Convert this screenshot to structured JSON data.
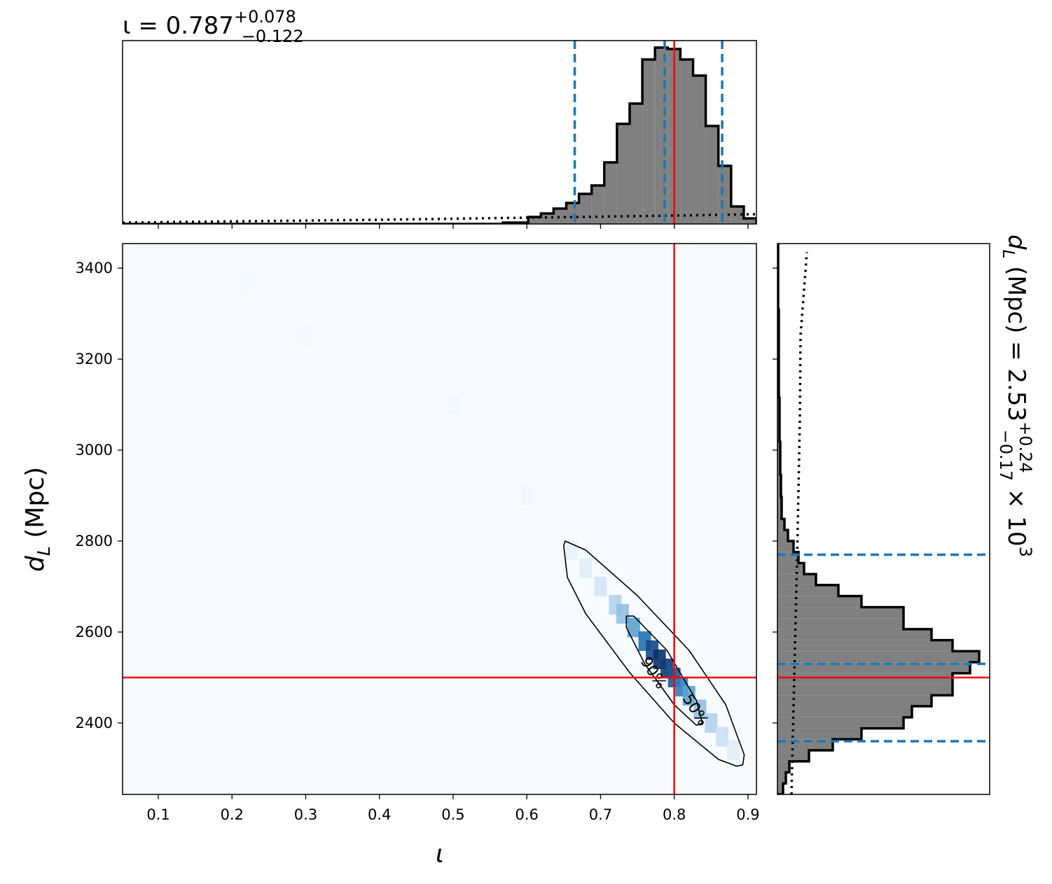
{
  "chart_data": [
    {
      "type": "histogram",
      "orientation": "vertical",
      "title": {
        "text": "ι = 0.787",
        "plus": "+0.078",
        "minus": "−0.122"
      },
      "bins": [
        0.0515,
        0.0687,
        0.0859,
        0.1031,
        0.1203,
        0.1375,
        0.1547,
        0.1719,
        0.1891,
        0.2063,
        0.2235,
        0.2407,
        0.2579,
        0.2751,
        0.2923,
        0.3095,
        0.3267,
        0.3439,
        0.3611,
        0.3783,
        0.3955,
        0.4127,
        0.4299,
        0.4471,
        0.4643,
        0.4815,
        0.4987,
        0.5159,
        0.5331,
        0.5503,
        0.5675,
        0.5847,
        0.6019,
        0.6191,
        0.6363,
        0.6535,
        0.6707,
        0.6879,
        0.7051,
        0.7223,
        0.7395,
        0.7567,
        0.7739,
        0.7911,
        0.8083,
        0.8255,
        0.8427,
        0.8599,
        0.8771,
        0.8943,
        0.9115
      ],
      "counts": [
        0,
        0,
        0,
        0,
        0,
        0,
        0,
        0,
        0,
        0,
        0,
        0,
        0,
        0,
        0,
        0,
        0,
        0,
        0,
        0,
        0,
        0,
        0,
        0,
        0,
        0,
        0,
        0,
        0,
        0,
        2,
        2,
        10,
        15,
        22,
        30,
        43,
        55,
        88,
        143,
        172,
        235,
        252,
        250,
        235,
        212,
        140,
        83,
        25,
        8
      ],
      "color": "#808080",
      "prior": {
        "x": [
          0.0515,
          0.4,
          0.6,
          0.8,
          0.9115
        ],
        "values": [
          2,
          6,
          9,
          12,
          14
        ]
      },
      "quantiles": [
        0.665,
        0.787,
        0.865
      ],
      "quantile_color": "#1f77b4",
      "truth": 0.8,
      "truth_color": "#ff0000",
      "xlim": [
        0.0515,
        0.9115
      ],
      "ylim": [
        0,
        262
      ],
      "xticks": [
        0.1,
        0.2,
        0.3,
        0.4,
        0.5,
        0.6,
        0.7,
        0.8,
        0.9
      ]
    },
    {
      "type": "hist2d",
      "xlabel": "ι",
      "ylabel": {
        "text": "d",
        "sub": "L",
        "rest": " (Mpc)"
      },
      "cmap": [
        "#f7fbff",
        "#c6dbef",
        "#6baed6",
        "#2171b5",
        "#08306b"
      ],
      "cells": {
        "x": [
          0.22,
          0.3,
          0.5,
          0.6,
          0.66,
          0.68,
          0.7,
          0.72,
          0.73,
          0.745,
          0.76,
          0.77,
          0.78,
          0.79,
          0.8,
          0.81,
          0.82,
          0.835,
          0.85,
          0.865,
          0.88
        ],
        "y": [
          3370,
          3250,
          3100,
          2900,
          2780,
          2740,
          2700,
          2660,
          2640,
          2610,
          2580,
          2560,
          2540,
          2520,
          2500,
          2480,
          2460,
          2430,
          2400,
          2370,
          2340
        ],
        "values": [
          0.02,
          0.02,
          0.03,
          0.04,
          0.08,
          0.12,
          0.18,
          0.3,
          0.4,
          0.55,
          0.75,
          0.9,
          1.0,
          0.95,
          0.85,
          0.7,
          0.55,
          0.4,
          0.3,
          0.22,
          0.12
        ]
      },
      "contours": [
        {
          "label": "90%",
          "x": [
            0.652,
            0.68,
            0.75,
            0.82,
            0.87,
            0.895,
            0.893,
            0.885,
            0.86,
            0.8,
            0.74,
            0.68,
            0.655,
            0.65
          ],
          "y": [
            2800,
            2780,
            2680,
            2560,
            2440,
            2330,
            2308,
            2305,
            2320,
            2400,
            2510,
            2640,
            2720,
            2790
          ]
        },
        {
          "label": "50%",
          "x": [
            0.735,
            0.745,
            0.79,
            0.83,
            0.838,
            0.83,
            0.8,
            0.76,
            0.735
          ],
          "y": [
            2635,
            2635,
            2560,
            2450,
            2400,
            2395,
            2440,
            2530,
            2610
          ]
        }
      ],
      "truth": {
        "x": 0.8,
        "y": 2500
      },
      "truth_color": "#ff0000",
      "xlim": [
        0.0515,
        0.9115
      ],
      "ylim": [
        2243,
        3454
      ],
      "xticks": [
        0.1,
        0.2,
        0.3,
        0.4,
        0.5,
        0.6,
        0.7,
        0.8,
        0.9
      ],
      "yticks": [
        2400,
        2600,
        2800,
        3000,
        3200,
        3400
      ]
    },
    {
      "type": "histogram",
      "orientation": "horizontal",
      "title": {
        "text": "d",
        "sub": "L",
        "mid": " (Mpc) = 2.53",
        "plus": "+0.24",
        "minus": "−0.17",
        "times": " × 10",
        "exp": "3"
      },
      "bins": [
        2243,
        2267.2,
        2291.4,
        2315.7,
        2339.9,
        2364.1,
        2388.3,
        2412.5,
        2436.8,
        2461.0,
        2485.2,
        2509.4,
        2533.6,
        2557.9,
        2582.1,
        2606.3,
        2630.5,
        2654.7,
        2679.0,
        2703.2,
        2727.4,
        2751.6,
        2775.8,
        2800.1,
        2824.3,
        2848.5,
        2872.7,
        2896.9,
        2921.2,
        2945.4,
        2969.6,
        2993.8,
        3018.0,
        3042.3,
        3066.5,
        3090.7,
        3114.9,
        3139.1,
        3163.4,
        3187.6,
        3211.8,
        3236.0,
        3260.2,
        3284.5,
        3308.7,
        3332.9,
        3357.1,
        3381.3,
        3405.6,
        3429.8,
        3454.0
      ],
      "counts": [
        8,
        12,
        17,
        45,
        79,
        120,
        180,
        192,
        220,
        250,
        250,
        275,
        288,
        250,
        220,
        180,
        180,
        120,
        87,
        55,
        38,
        30,
        23,
        15,
        10,
        6,
        6,
        5,
        5,
        4,
        4,
        4,
        3,
        3,
        3,
        3,
        2,
        2,
        2,
        2,
        2,
        2,
        2,
        2,
        1,
        1,
        1,
        1,
        1,
        1
      ],
      "color": "#808080",
      "prior": {
        "y": [
          2243,
          2758,
          3066,
          3251,
          3435
        ],
        "values": [
          20,
          28,
          32,
          33,
          42
        ]
      },
      "quantiles": [
        2360,
        2530,
        2770
      ],
      "quantile_color": "#1f77b4",
      "truth": 2500,
      "truth_color": "#ff0000",
      "xlim": [
        0,
        303
      ],
      "ylim": [
        2243,
        3454
      ],
      "yticks": [
        2400,
        2600,
        2800,
        3000,
        3200,
        3400
      ]
    }
  ]
}
